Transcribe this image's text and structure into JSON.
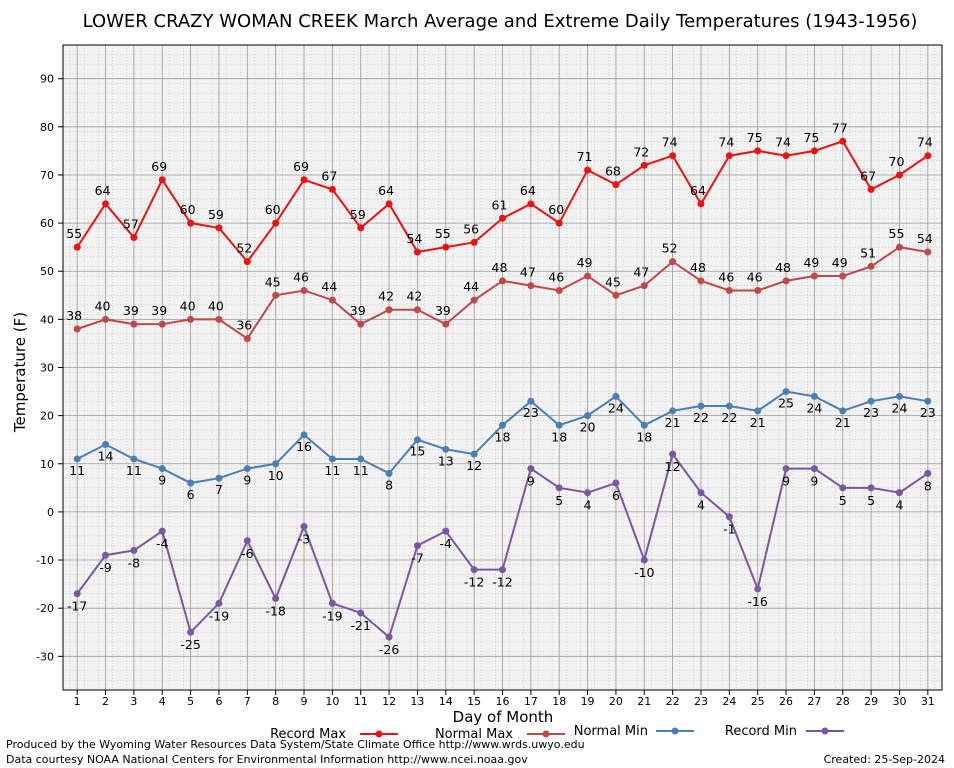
{
  "chart_data": {
    "type": "line",
    "title": "LOWER CRAZY WOMAN CREEK March Average and Extreme Daily Temperatures (1943-1956)",
    "xlabel": "Day of Month",
    "ylabel": "Temperature (F)",
    "xlim": [
      0.5,
      31.5
    ],
    "ylim": [
      -37,
      97
    ],
    "yticks": [
      -30,
      -20,
      -10,
      0,
      10,
      20,
      30,
      40,
      50,
      60,
      70,
      80,
      90
    ],
    "x": [
      1,
      2,
      3,
      4,
      5,
      6,
      7,
      8,
      9,
      10,
      11,
      12,
      13,
      14,
      15,
      16,
      17,
      18,
      19,
      20,
      21,
      22,
      23,
      24,
      25,
      26,
      27,
      28,
      29,
      30,
      31
    ],
    "grid": true,
    "legend_position": "bottom",
    "series": [
      {
        "name": "Record Max",
        "color": "#ee1111",
        "values": [
          55,
          64,
          57,
          69,
          60,
          59,
          52,
          60,
          69,
          67,
          59,
          64,
          54,
          55,
          56,
          61,
          64,
          60,
          71,
          68,
          72,
          74,
          64,
          74,
          75,
          74,
          75,
          77,
          67,
          70,
          74
        ]
      },
      {
        "name": "Normal Max",
        "color": "#c0474a",
        "values": [
          38,
          40,
          39,
          39,
          40,
          40,
          36,
          45,
          46,
          44,
          39,
          42,
          42,
          39,
          44,
          48,
          47,
          46,
          49,
          45,
          47,
          52,
          48,
          46,
          46,
          48,
          49,
          49,
          51,
          55,
          54
        ]
      },
      {
        "name": "Normal Min",
        "color": "#4a7fb5",
        "values": [
          11,
          14,
          11,
          9,
          6,
          7,
          9,
          10,
          16,
          11,
          11,
          8,
          15,
          13,
          12,
          18,
          23,
          18,
          20,
          24,
          18,
          21,
          22,
          22,
          21,
          25,
          24,
          21,
          23,
          24,
          23
        ]
      },
      {
        "name": "Record Min",
        "color": "#7b57a0",
        "values": [
          -17,
          -9,
          -8,
          -4,
          -25,
          -19,
          -6,
          -18,
          -3,
          -19,
          -21,
          -26,
          -7,
          -4,
          -12,
          -12,
          9,
          5,
          4,
          6,
          -10,
          12,
          4,
          -1,
          -16,
          9,
          9,
          5,
          5,
          4,
          8
        ]
      }
    ]
  },
  "footer": {
    "produced_by": "Produced by the Wyoming Water Resources Data System/State Climate Office http://www.wrds.uwyo.edu",
    "courtesy": "Data courtesy NOAA National Centers for Environmental Information http://www.ncei.noaa.gov",
    "created": "Created:  25-Sep-2024"
  }
}
